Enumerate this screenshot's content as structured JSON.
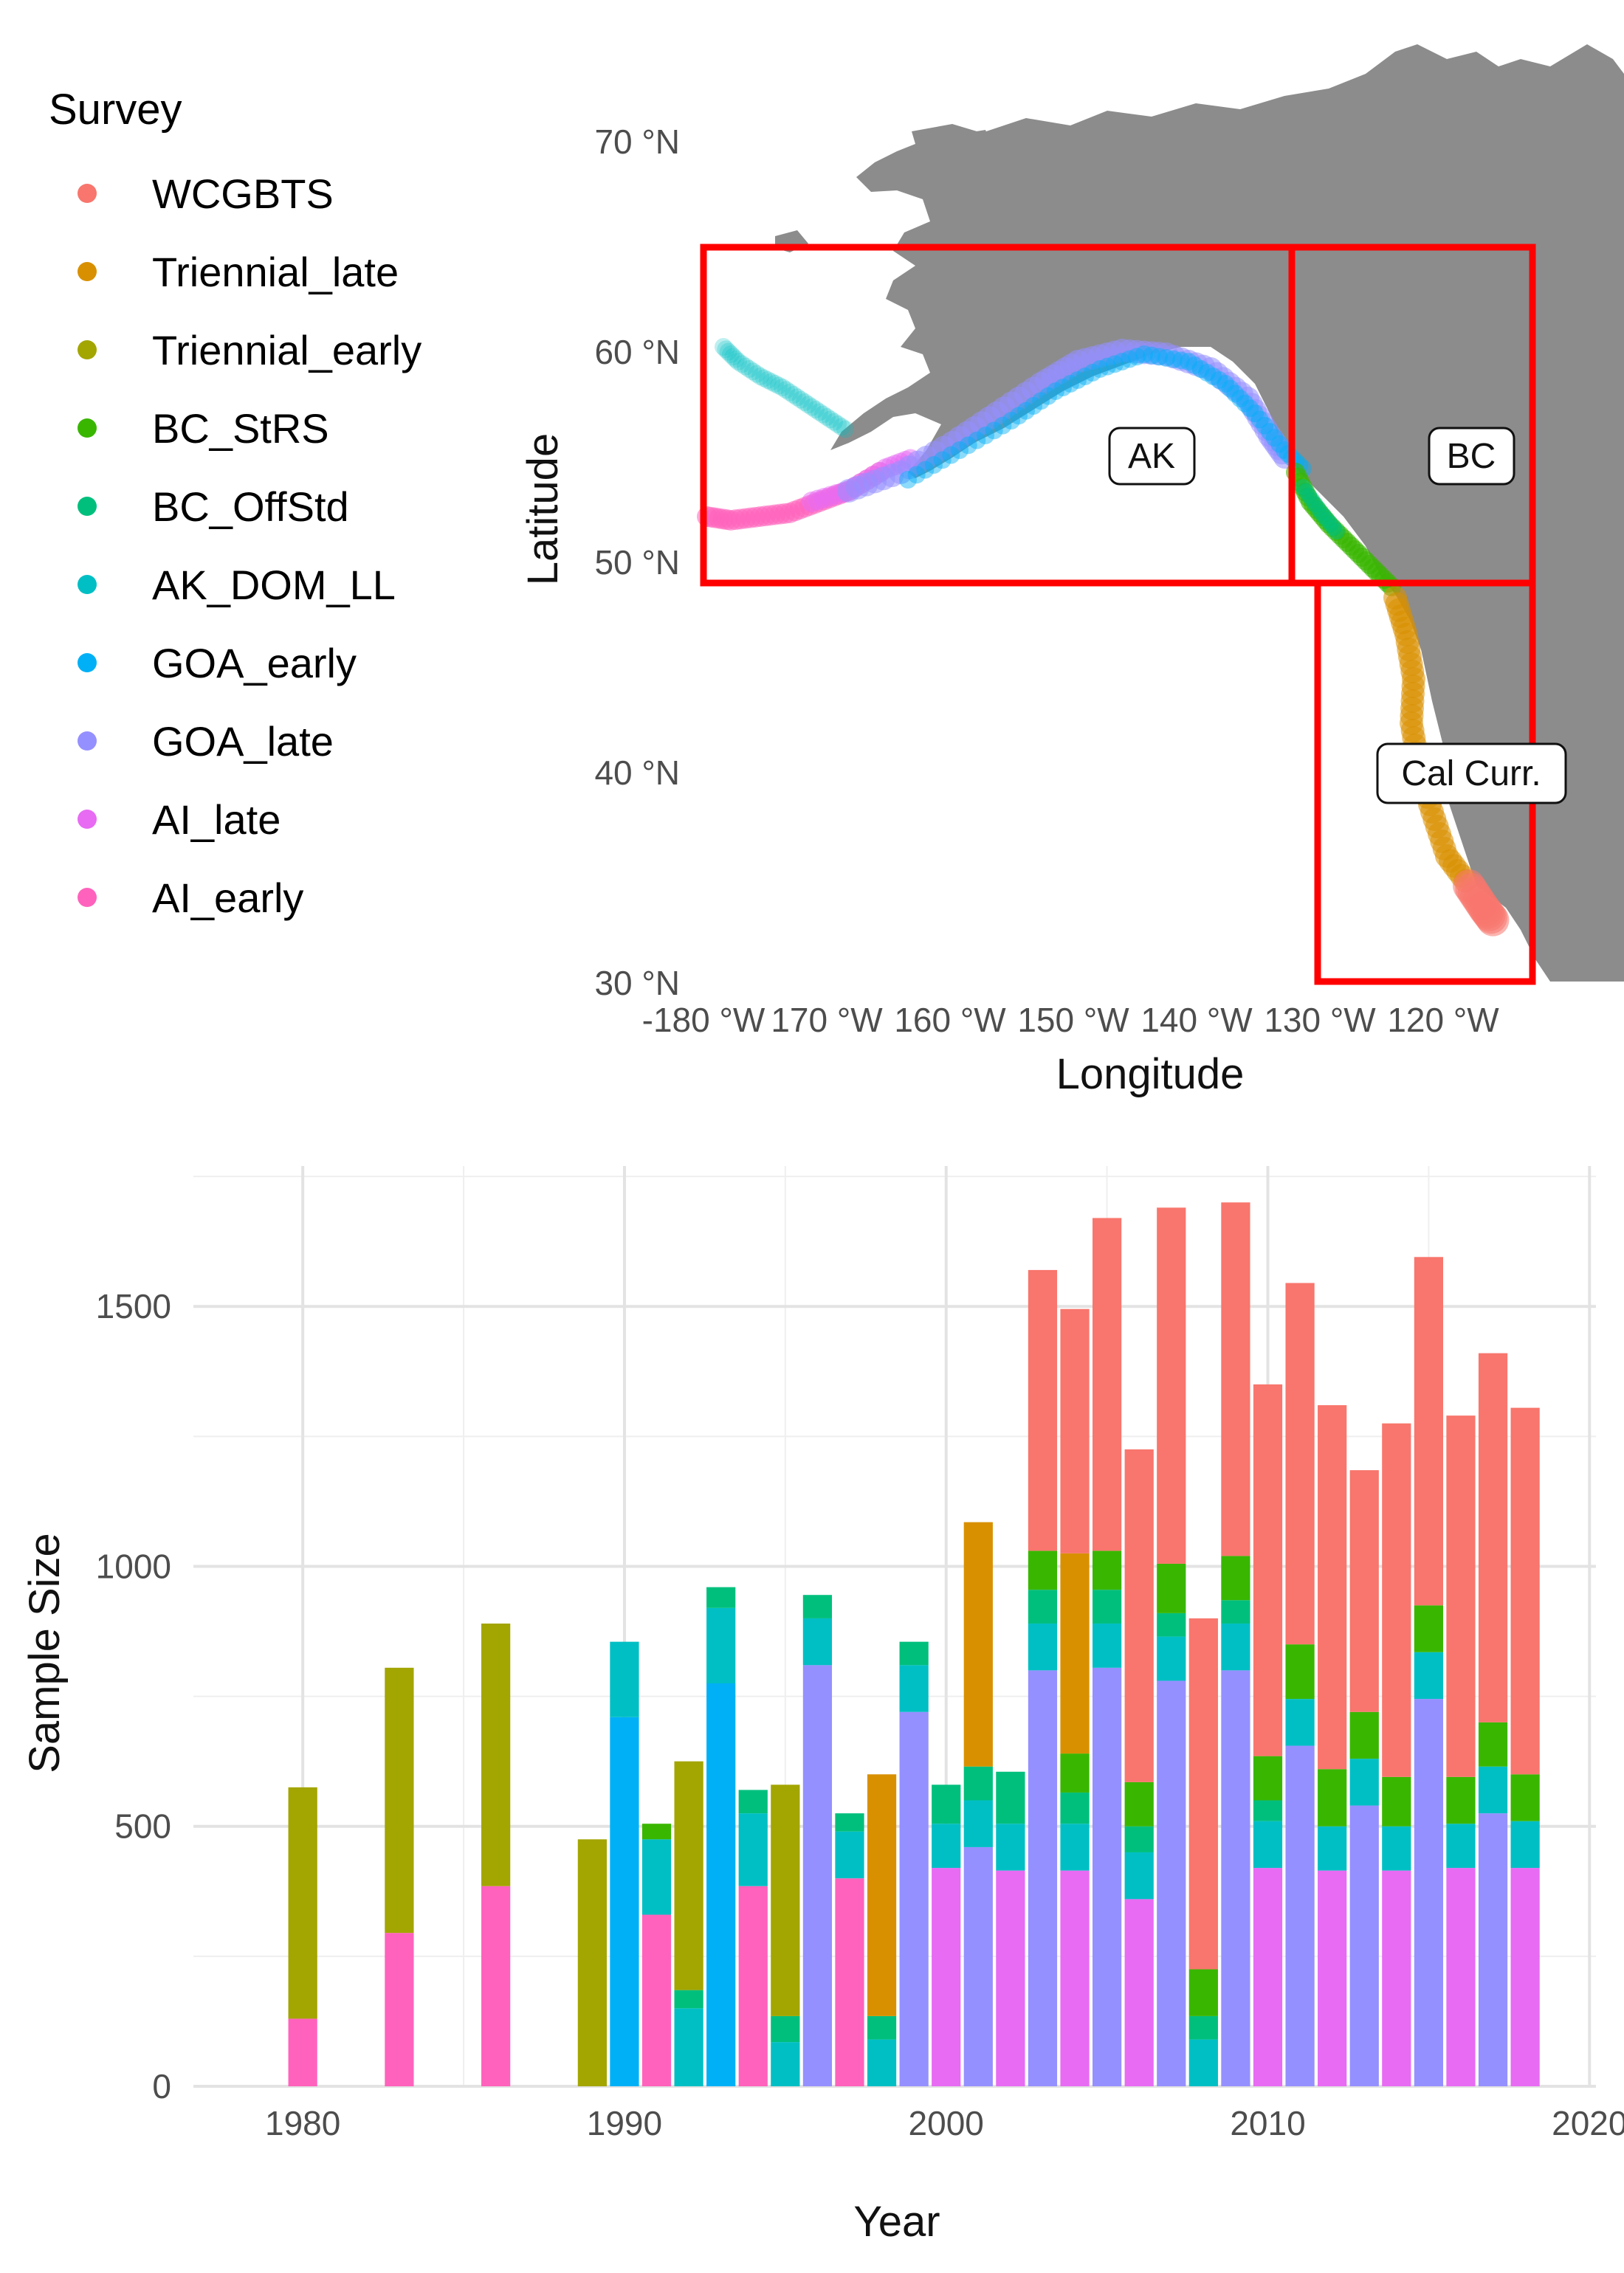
{
  "legend": {
    "title": "Survey",
    "items": [
      {
        "label": "WCGBTS",
        "color": "#F8766D"
      },
      {
        "label": "Triennial_late",
        "color": "#D89000"
      },
      {
        "label": "Triennial_early",
        "color": "#A3A500"
      },
      {
        "label": "BC_StRS",
        "color": "#39B600"
      },
      {
        "label": "BC_OffStd",
        "color": "#00BF7D"
      },
      {
        "label": "AK_DOM_LL",
        "color": "#00BFC4"
      },
      {
        "label": "GOA_early",
        "color": "#00B0F6"
      },
      {
        "label": "GOA_late",
        "color": "#9590FF"
      },
      {
        "label": "AI_late",
        "color": "#E76BF3"
      },
      {
        "label": "AI_early",
        "color": "#FF62BC"
      }
    ]
  },
  "map": {
    "xlabel": "Longitude",
    "ylabel": "Latitude",
    "x_ticks": [
      "-180 °W",
      "170 °W",
      "160 °W",
      "150 °W",
      "140 °W",
      "130 °W",
      "120 °W"
    ],
    "y_ticks": [
      "70 °N",
      "60 °N",
      "50 °N",
      "40 °N",
      "30 °N"
    ],
    "regions": [
      {
        "label": "AK"
      },
      {
        "label": "BC"
      },
      {
        "label": "Cal Curr."
      }
    ],
    "land_color": "#8c8c8c",
    "box_color": "#ff0000"
  },
  "chart_data": {
    "type": "bar",
    "stacked": true,
    "xlabel": "Year",
    "ylabel": "Sample Size",
    "xlim": [
      1976.6,
      2020.2
    ],
    "ylim": [
      0,
      1770
    ],
    "x_ticks": [
      1980,
      1990,
      2000,
      2010,
      2020
    ],
    "y_ticks": [
      0,
      500,
      1000,
      1500
    ],
    "grid": true,
    "series_order": [
      "AI_early",
      "AI_late",
      "GOA_late",
      "GOA_early",
      "AK_DOM_LL",
      "BC_OffStd",
      "BC_StRS",
      "Triennial_early",
      "Triennial_late",
      "WCGBTS"
    ],
    "bars": [
      {
        "year": 1980,
        "AI_early": 130,
        "Triennial_early": 445
      },
      {
        "year": 1983,
        "AI_early": 295,
        "Triennial_early": 510
      },
      {
        "year": 1986,
        "AI_early": 385,
        "Triennial_early": 505
      },
      {
        "year": 1989,
        "Triennial_early": 475
      },
      {
        "year": 1990,
        "GOA_early": 710,
        "AK_DOM_LL": 145
      },
      {
        "year": 1991,
        "AI_early": 330,
        "AK_DOM_LL": 145,
        "BC_StRS": 30
      },
      {
        "year": 1992,
        "AK_DOM_LL": 150,
        "BC_OffStd": 35,
        "Triennial_early": 440
      },
      {
        "year": 1993,
        "GOA_early": 775,
        "AK_DOM_LL": 145,
        "BC_OffStd": 40
      },
      {
        "year": 1994,
        "AI_early": 385,
        "AK_DOM_LL": 140,
        "BC_OffStd": 45
      },
      {
        "year": 1995,
        "AK_DOM_LL": 85,
        "BC_OffStd": 50,
        "Triennial_early": 445
      },
      {
        "year": 1996,
        "GOA_late": 810,
        "AK_DOM_LL": 90,
        "BC_OffStd": 45
      },
      {
        "year": 1997,
        "AI_early": 400,
        "AK_DOM_LL": 90,
        "BC_OffStd": 35
      },
      {
        "year": 1998,
        "AK_DOM_LL": 90,
        "BC_OffStd": 45,
        "Triennial_late": 465
      },
      {
        "year": 1999,
        "GOA_late": 720,
        "AK_DOM_LL": 90,
        "BC_OffStd": 45
      },
      {
        "year": 2000,
        "AI_late": 420,
        "AK_DOM_LL": 85,
        "BC_OffStd": 75
      },
      {
        "year": 2001,
        "GOA_late": 460,
        "AK_DOM_LL": 90,
        "BC_OffStd": 65,
        "Triennial_late": 470
      },
      {
        "year": 2002,
        "AI_late": 415,
        "AK_DOM_LL": 90,
        "BC_OffStd": 100
      },
      {
        "year": 2003,
        "GOA_late": 800,
        "AK_DOM_LL": 90,
        "BC_OffStd": 65,
        "BC_StRS": 75,
        "WCGBTS": 540
      },
      {
        "year": 2004,
        "AI_late": 415,
        "AK_DOM_LL": 90,
        "BC_OffStd": 60,
        "BC_StRS": 75,
        "Triennial_late": 385,
        "WCGBTS": 470
      },
      {
        "year": 2005,
        "GOA_late": 805,
        "AK_DOM_LL": 85,
        "BC_OffStd": 65,
        "BC_StRS": 75,
        "WCGBTS": 640
      },
      {
        "year": 2006,
        "AI_late": 360,
        "AK_DOM_LL": 90,
        "BC_OffStd": 50,
        "BC_StRS": 85,
        "WCGBTS": 640
      },
      {
        "year": 2007,
        "GOA_late": 780,
        "AK_DOM_LL": 85,
        "BC_OffStd": 45,
        "BC_StRS": 95,
        "WCGBTS": 685
      },
      {
        "year": 2008,
        "AK_DOM_LL": 90,
        "BC_OffStd": 45,
        "BC_StRS": 90,
        "WCGBTS": 675
      },
      {
        "year": 2009,
        "GOA_late": 800,
        "AK_DOM_LL": 90,
        "BC_OffStd": 45,
        "BC_StRS": 85,
        "WCGBTS": 680
      },
      {
        "year": 2010,
        "AI_late": 420,
        "AK_DOM_LL": 90,
        "BC_OffStd": 40,
        "BC_StRS": 85,
        "WCGBTS": 715
      },
      {
        "year": 2011,
        "GOA_late": 655,
        "AK_DOM_LL": 90,
        "BC_StRS": 105,
        "WCGBTS": 695
      },
      {
        "year": 2012,
        "AI_late": 415,
        "AK_DOM_LL": 85,
        "BC_StRS": 110,
        "WCGBTS": 700
      },
      {
        "year": 2013,
        "GOA_late": 540,
        "AK_DOM_LL": 90,
        "BC_StRS": 90,
        "WCGBTS": 465
      },
      {
        "year": 2014,
        "AI_late": 415,
        "AK_DOM_LL": 85,
        "BC_StRS": 95,
        "WCGBTS": 680
      },
      {
        "year": 2015,
        "GOA_late": 745,
        "AK_DOM_LL": 90,
        "BC_StRS": 90,
        "WCGBTS": 670
      },
      {
        "year": 2016,
        "AI_late": 420,
        "AK_DOM_LL": 85,
        "BC_StRS": 90,
        "WCGBTS": 695
      },
      {
        "year": 2017,
        "GOA_late": 525,
        "AK_DOM_LL": 90,
        "BC_StRS": 85,
        "WCGBTS": 710
      },
      {
        "year": 2018,
        "AI_late": 420,
        "AK_DOM_LL": 90,
        "BC_StRS": 90,
        "WCGBTS": 705
      }
    ]
  }
}
